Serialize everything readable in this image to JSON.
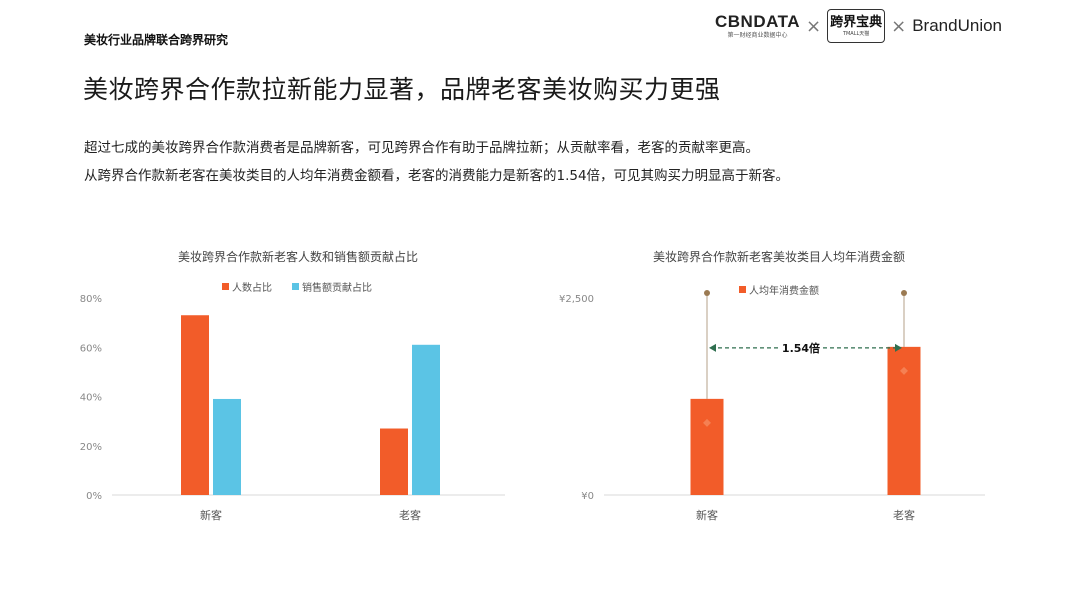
{
  "header": {
    "section_label": "美妆行业品牌联合跨界研究",
    "logos": {
      "cbndata": "CBNDATA",
      "cbndata_sub": "第一财经商业数据中心",
      "times_symbol": "×",
      "tmall": "跨界宝典",
      "tmall_sub": "TMALL天猫",
      "brandunion": "BrandUnion"
    }
  },
  "headline": "美妆跨界合作款拉新能力显著，品牌老客美妆购买力更强",
  "description": [
    "超过七成的美妆跨界合作款消费者是品牌新客，可见跨界合作有助于品牌拉新；从贡献率看，老客的贡献率更高。",
    "从跨界合作款新老客在美妆类目的人均年消费金额看，老客的消费能力是新客的1.54倍，可见其购买力明显高于新客。"
  ],
  "colors": {
    "orange": "#F25C29",
    "blue": "#5BC4E5",
    "marker": "#9B7A52",
    "axis": "#D9D9D9"
  },
  "chart_data": [
    {
      "type": "bar",
      "title": "美妆跨界合作款新老客人数和销售额贡献占比",
      "categories": [
        "新客",
        "老客"
      ],
      "series": [
        {
          "name": "人数占比",
          "values": [
            73,
            27
          ]
        },
        {
          "name": "销售额贡献占比",
          "values": [
            39,
            61
          ]
        }
      ],
      "ylim": [
        0,
        80
      ],
      "yticks": [
        "0%",
        "20%",
        "40%",
        "60%",
        "80%"
      ],
      "ytick_values": [
        0,
        20,
        40,
        60,
        80
      ],
      "legend": "top",
      "grid": false
    },
    {
      "type": "bar",
      "title": "美妆跨界合作款新老客美妆类目人均年消费金额",
      "categories": [
        "新客",
        "老客"
      ],
      "series": [
        {
          "name": "人均年消费金额",
          "values": [
            1220,
            1880
          ]
        }
      ],
      "ylim": [
        0,
        2500
      ],
      "yticks": [
        "¥0",
        "¥2,500"
      ],
      "ytick_values": [
        0,
        2500
      ],
      "annotation": "1.54倍",
      "legend": "top",
      "grid": false
    }
  ]
}
